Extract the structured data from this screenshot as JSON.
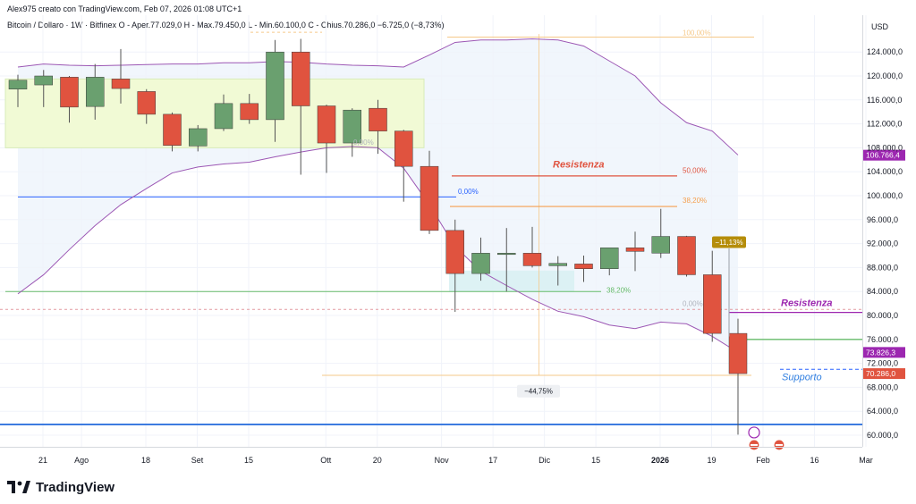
{
  "header": {
    "created_by": "Alex975 creato con TradingView.com, Feb 07, 2026 01:08 UTC+1",
    "symbol": "Bitcoin / Dollaro · 1W · Bitfinex",
    "ohlc": "O - Aper.77.029,0  H - Max.79.450,0  L - Min.60.100,0  C - Chius.70.286,0  −6.725,0 (−8,73%)"
  },
  "currency": "USD",
  "brand": "TradingView",
  "chart_data": {
    "type": "candlestick",
    "timeframe": "1W",
    "y_axis": {
      "ticks": [
        60000,
        64000,
        68000,
        72000,
        76000,
        80000,
        84000,
        88000,
        92000,
        96000,
        100000,
        104000,
        108000,
        112000,
        116000,
        120000,
        124000
      ],
      "tick_labels": [
        "60.000,0",
        "64.000,0",
        "68.000,0",
        "72.000,0",
        "76.000,0",
        "80.000,0",
        "84.000,0",
        "88.000,0",
        "92.000,0",
        "96.000,0",
        "100.000,0",
        "104.000,0",
        "108.000,0",
        "112.000,0",
        "116.000,0",
        "120.000,0",
        "124.000,0"
      ],
      "range": [
        57500,
        127500
      ]
    },
    "x_axis": {
      "labels": [
        "21",
        "Ago",
        "18",
        "Set",
        "15",
        "Ott",
        "20",
        "Nov",
        "17",
        "Dic",
        "15",
        "2026",
        "19",
        "Feb",
        "16",
        "Mar"
      ],
      "label_week_index": [
        0,
        1.5,
        4,
        6,
        8,
        11,
        13,
        15.5,
        17.5,
        19.5,
        21.5,
        24,
        26,
        28,
        30,
        32
      ]
    },
    "candles": [
      {
        "o": 117800,
        "h": 120200,
        "l": 114800,
        "c": 119300
      },
      {
        "o": 118500,
        "h": 121000,
        "l": 114800,
        "c": 120000
      },
      {
        "o": 119800,
        "h": 120000,
        "l": 112200,
        "c": 114800
      },
      {
        "o": 114900,
        "h": 122000,
        "l": 112700,
        "c": 119800
      },
      {
        "o": 119500,
        "h": 124500,
        "l": 115400,
        "c": 117900
      },
      {
        "o": 117400,
        "h": 117800,
        "l": 112000,
        "c": 113600
      },
      {
        "o": 113600,
        "h": 113900,
        "l": 107400,
        "c": 108400
      },
      {
        "o": 108300,
        "h": 111800,
        "l": 107400,
        "c": 111200
      },
      {
        "o": 111200,
        "h": 116900,
        "l": 110800,
        "c": 115400
      },
      {
        "o": 115400,
        "h": 117000,
        "l": 112000,
        "c": 112700
      },
      {
        "o": 112700,
        "h": 126000,
        "l": 109000,
        "c": 124000
      },
      {
        "o": 124000,
        "h": 126200,
        "l": 103500,
        "c": 115000
      },
      {
        "o": 115000,
        "h": 115200,
        "l": 103800,
        "c": 108800
      },
      {
        "o": 108800,
        "h": 114600,
        "l": 106500,
        "c": 114300
      },
      {
        "o": 114600,
        "h": 116000,
        "l": 107000,
        "c": 110800
      },
      {
        "o": 110800,
        "h": 111000,
        "l": 99000,
        "c": 104900
      },
      {
        "o": 104900,
        "h": 107500,
        "l": 93600,
        "c": 94200
      },
      {
        "o": 94200,
        "h": 96000,
        "l": 80600,
        "c": 87000
      },
      {
        "o": 87000,
        "h": 93000,
        "l": 85800,
        "c": 90400
      },
      {
        "o": 90400,
        "h": 94600,
        "l": 84000,
        "c": 90400
      },
      {
        "o": 90400,
        "h": 94800,
        "l": 88000,
        "c": 88300
      },
      {
        "o": 88300,
        "h": 89900,
        "l": 85000,
        "c": 88700
      },
      {
        "o": 88600,
        "h": 90000,
        "l": 85600,
        "c": 87800
      },
      {
        "o": 87800,
        "h": 91200,
        "l": 86700,
        "c": 91300
      },
      {
        "o": 91300,
        "h": 94000,
        "l": 87400,
        "c": 90700
      },
      {
        "o": 90400,
        "h": 97800,
        "l": 89600,
        "c": 93200
      },
      {
        "o": 93200,
        "h": 93300,
        "l": 86500,
        "c": 86800
      },
      {
        "o": 86800,
        "h": 90800,
        "l": 75600,
        "c": 77000
      },
      {
        "o": 77000,
        "h": 79450,
        "l": 60100,
        "c": 70286
      }
    ],
    "bollinger_upper": [
      121500,
      122000,
      121800,
      121700,
      121800,
      121900,
      122000,
      122000,
      122200,
      122200,
      122400,
      122300,
      122000,
      121800,
      121700,
      121500,
      123500,
      125600,
      126000,
      126000,
      126200,
      126000,
      125000,
      122500,
      120000,
      115500,
      112200,
      110800,
      106800
    ],
    "bollinger_lower": [
      83600,
      86800,
      91000,
      95000,
      98500,
      101200,
      103800,
      104800,
      105300,
      105600,
      106500,
      107300,
      108000,
      108200,
      108000,
      104600,
      98500,
      91500,
      87400,
      85000,
      82700,
      80700,
      79800,
      78400,
      77800,
      78900,
      78600,
      76500,
      73826
    ],
    "levels": [
      {
        "name": "Resistenza",
        "value": 103300,
        "color": "#e0533f"
      },
      {
        "name": "Resistenza",
        "value": 80500,
        "color": "#9c27b0"
      },
      {
        "name": "Supporto",
        "value": 71000,
        "color": "#2962ff"
      }
    ],
    "fib_labels": [
      "100,00%",
      "50,00%",
      "38,20%",
      "0,00%",
      "0,00%",
      "38,20%",
      "0,00%"
    ],
    "measure_labels": [
      "−44,75%",
      "−11,13%"
    ],
    "price_tags": [
      {
        "label": "106.766,4",
        "value": 106766,
        "color": "#9c27b0"
      },
      {
        "label": "73.826,3",
        "value": 73826,
        "color": "#9c27b0"
      },
      {
        "label": "70.286,0",
        "value": 70286,
        "color": "#e0533f"
      }
    ],
    "colors": {
      "up": "#6aa06f",
      "down": "#e0533f",
      "bollinger": "#9c57b4",
      "green_line": "#66bb6a",
      "blue_line": "#2962ff"
    }
  }
}
